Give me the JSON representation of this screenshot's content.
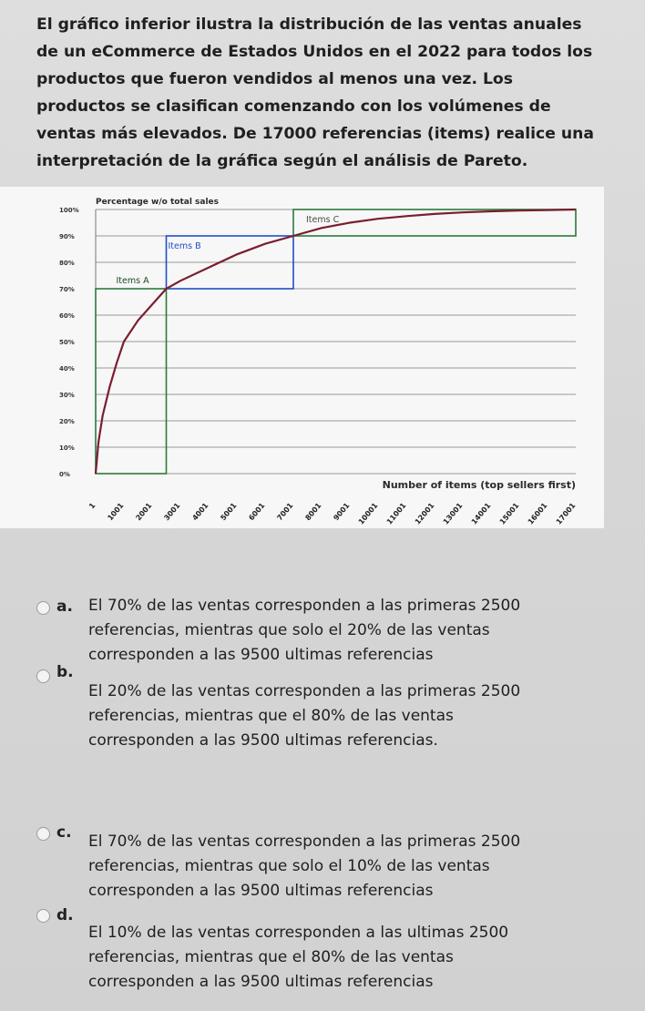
{
  "question": {
    "text": "El gráfico inferior ilustra la distribución de las ventas anuales de un eCommerce de Estados Unidos en el 2022 para todos los productos que fueron vendidos al menos una vez. Los productos se clasifican comenzando con los volúmenes de ventas más elevados. De 17000 referencias (items) realice una interpretación de la gráfica según el análisis de Pareto."
  },
  "chart_data": {
    "type": "line",
    "title": "Percentage w/o total sales",
    "xlabel": "Number of items (top sellers first)",
    "ylabel": "",
    "x": [
      1,
      1001,
      2001,
      3001,
      4001,
      5001,
      6001,
      7001,
      8001,
      9001,
      10001,
      11001,
      12001,
      13001,
      14001,
      15001,
      16001,
      17001
    ],
    "x_tick_labels": [
      "1",
      "1001",
      "2001",
      "3001",
      "4001",
      "5001",
      "6001",
      "7001",
      "8001",
      "9001",
      "10001",
      "11001",
      "12001",
      "13001",
      "14001",
      "15001",
      "16001",
      "17001"
    ],
    "y_tick_labels": [
      "0%",
      "10%",
      "20%",
      "30%",
      "40%",
      "50%",
      "60%",
      "70%",
      "80%",
      "90%",
      "100%"
    ],
    "series": [
      {
        "color": "#7a1e2e",
        "points": [
          [
            1,
            0
          ],
          [
            100,
            12
          ],
          [
            250,
            22
          ],
          [
            500,
            33
          ],
          [
            750,
            42
          ],
          [
            1001,
            50
          ],
          [
            1500,
            58
          ],
          [
            2001,
            64
          ],
          [
            2501,
            70
          ],
          [
            3001,
            73
          ],
          [
            4001,
            78
          ],
          [
            5001,
            83
          ],
          [
            6001,
            87
          ],
          [
            7001,
            90
          ],
          [
            8001,
            93
          ],
          [
            9001,
            95
          ],
          [
            10001,
            96.5
          ],
          [
            11001,
            97.5
          ],
          [
            12001,
            98.3
          ],
          [
            13001,
            98.9
          ],
          [
            14001,
            99.3
          ],
          [
            15001,
            99.6
          ],
          [
            16001,
            99.8
          ],
          [
            17001,
            100
          ]
        ]
      }
    ],
    "regions": [
      {
        "label": "Items A",
        "x_range": [
          1,
          2501
        ],
        "y_range": [
          0,
          70
        ],
        "color": "#2c7a3a"
      },
      {
        "label": "Items B",
        "x_range": [
          2501,
          7001
        ],
        "y_range": [
          70,
          90
        ],
        "color": "#1f4fc7"
      },
      {
        "label": "Items C",
        "x_range": [
          7001,
          17001
        ],
        "y_range": [
          90,
          100
        ],
        "color": "#2c7a3a"
      }
    ],
    "xlim": [
      1,
      17001
    ],
    "ylim": [
      0,
      100
    ],
    "grid": true
  },
  "options": [
    {
      "letter": "a.",
      "lines": [
        "El 70% de las ventas corresponden a las primeras 2500",
        "referencias, mientras que solo el 20% de las ventas",
        "corresponden a las 9500 ultimas referencias"
      ]
    },
    {
      "letter": "b.",
      "lines": [
        "El 20% de las ventas corresponden a las primeras 2500",
        "referencias, mientras que el 80% de las ventas",
        "corresponden a las 9500 ultimas referencias."
      ]
    },
    {
      "letter": "c.",
      "lines": [
        "El 70% de las ventas corresponden a las primeras 2500",
        "referencias, mientras que solo el 10% de las ventas",
        "corresponden a las 9500 ultimas referencias"
      ]
    },
    {
      "letter": "d.",
      "lines": [
        "El 10% de las ventas corresponden a las ultimas 2500",
        "referencias, mientras que el 80% de las ventas",
        "corresponden a las 9500 ultimas referencias"
      ]
    }
  ]
}
